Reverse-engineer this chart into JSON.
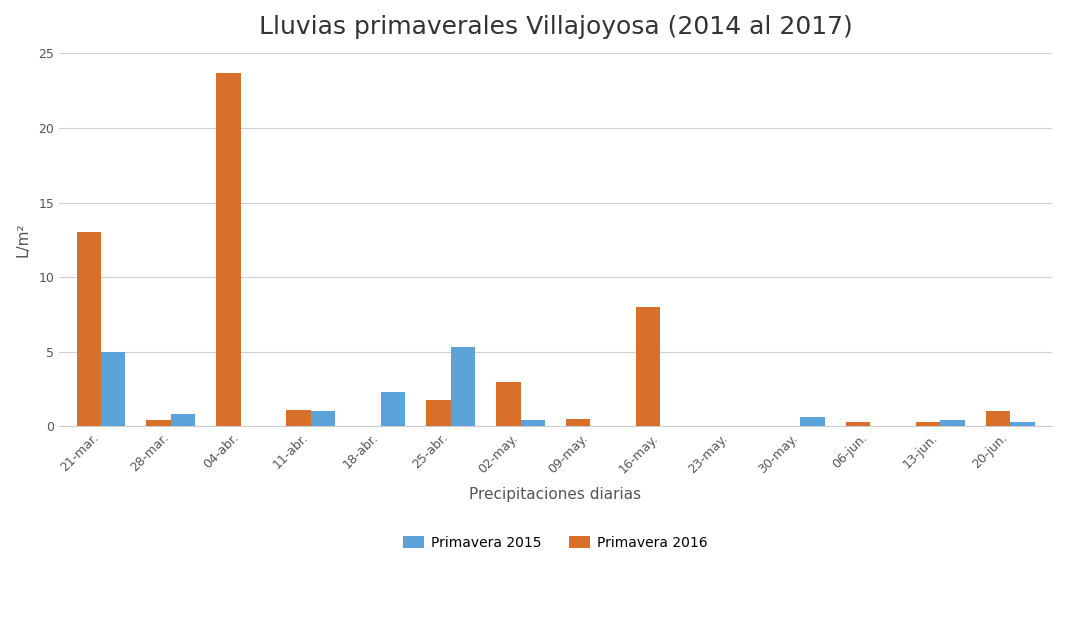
{
  "title": "Lluvias primaverales Villajoyosa (2014 al 2017)",
  "xlabel": "Precipitaciones diarias",
  "ylabel": "L/m²",
  "ylim": [
    0,
    25
  ],
  "yticks": [
    0,
    5,
    10,
    15,
    20,
    25
  ],
  "bar_width": 0.35,
  "color_2015": "#5ba3d9",
  "color_2016": "#d9702a",
  "legend_labels": [
    "Primavera 2015",
    "Primavera 2016"
  ],
  "categories": [
    "21-mar.",
    "28-mar.",
    "04-abr.",
    "11-abr.",
    "18-abr.",
    "25-abr.",
    "02-may.",
    "09-may.",
    "16-may.",
    "23-may.",
    "30-may.",
    "06-jun.",
    "13-jun.",
    "20-jun."
  ],
  "values_2015": [
    5.0,
    0.8,
    0.0,
    1.0,
    2.3,
    5.3,
    0.4,
    0.0,
    0.0,
    0.0,
    0.6,
    0.0,
    0.4,
    0.3
  ],
  "values_2016": [
    13.0,
    0.4,
    23.7,
    1.1,
    0.0,
    1.8,
    3.0,
    0.5,
    8.0,
    0.0,
    0.0,
    0.3,
    0.3,
    1.0
  ],
  "background_color": "#ffffff",
  "grid_color": "#d0d0d0",
  "title_fontsize": 18,
  "axis_label_fontsize": 11,
  "tick_fontsize": 9,
  "legend_fontsize": 10
}
